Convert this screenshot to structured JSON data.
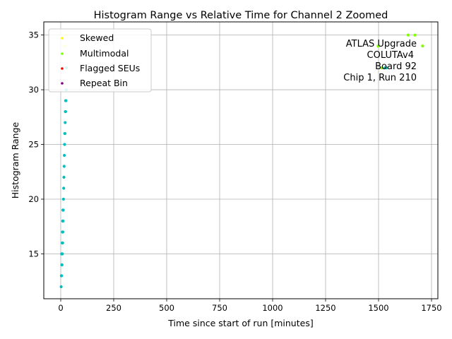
{
  "chart_data": {
    "type": "scatter",
    "title": "Histogram Range vs Relative Time for Channel 2 Zoomed",
    "xlabel": "Time since start of run [minutes]",
    "ylabel": "Histogram Range",
    "xlim": [
      -80,
      1780
    ],
    "ylim": [
      10.9,
      36.2
    ],
    "xticks": [
      0,
      250,
      500,
      750,
      1000,
      1250,
      1500,
      1750
    ],
    "yticks": [
      15,
      20,
      25,
      30,
      35
    ],
    "grid": true,
    "legend_position": "top-left",
    "annotation_lines": [
      "ATLAS Upgrade",
      "COLUTAv4",
      "Board 92",
      "Chip 1, Run 210"
    ],
    "base_color": "#00bfbf",
    "series": [
      {
        "color": "#00bfbf",
        "points": [
          [
            2,
            12
          ],
          [
            3,
            13
          ],
          [
            4,
            13
          ],
          [
            5,
            14
          ],
          [
            6,
            14
          ],
          [
            4,
            15
          ],
          [
            6,
            15
          ],
          [
            8,
            15
          ],
          [
            7,
            16
          ],
          [
            9,
            16
          ],
          [
            8,
            17
          ],
          [
            10,
            17
          ],
          [
            9,
            18
          ],
          [
            11,
            18
          ],
          [
            10,
            19
          ],
          [
            12,
            19
          ],
          [
            13,
            20
          ],
          [
            14,
            21
          ],
          [
            15,
            22
          ],
          [
            16,
            23
          ],
          [
            17,
            24
          ],
          [
            18,
            25
          ],
          [
            19,
            26
          ],
          [
            20,
            26
          ],
          [
            21,
            27
          ],
          [
            22,
            28
          ],
          [
            23,
            28
          ],
          [
            23,
            29
          ],
          [
            25,
            29
          ],
          [
            26,
            30
          ],
          [
            27,
            32
          ],
          [
            1530,
            32
          ],
          [
            1538,
            32
          ]
        ]
      },
      {
        "name": "Skewed",
        "color": "#ffff00",
        "points": [
          [
            28,
            35
          ],
          [
            20,
            34
          ]
        ]
      },
      {
        "name": "Multimodal",
        "color": "#7fff00",
        "points": [
          [
            1640,
            35
          ],
          [
            1672,
            35
          ],
          [
            1708,
            34
          ],
          [
            1498,
            34
          ],
          [
            1515,
            32
          ]
        ]
      },
      {
        "name": "Flagged SEUs",
        "color": "#ff0000",
        "points": []
      },
      {
        "name": "Repeat Bin",
        "color": "#800080",
        "points": []
      }
    ]
  }
}
